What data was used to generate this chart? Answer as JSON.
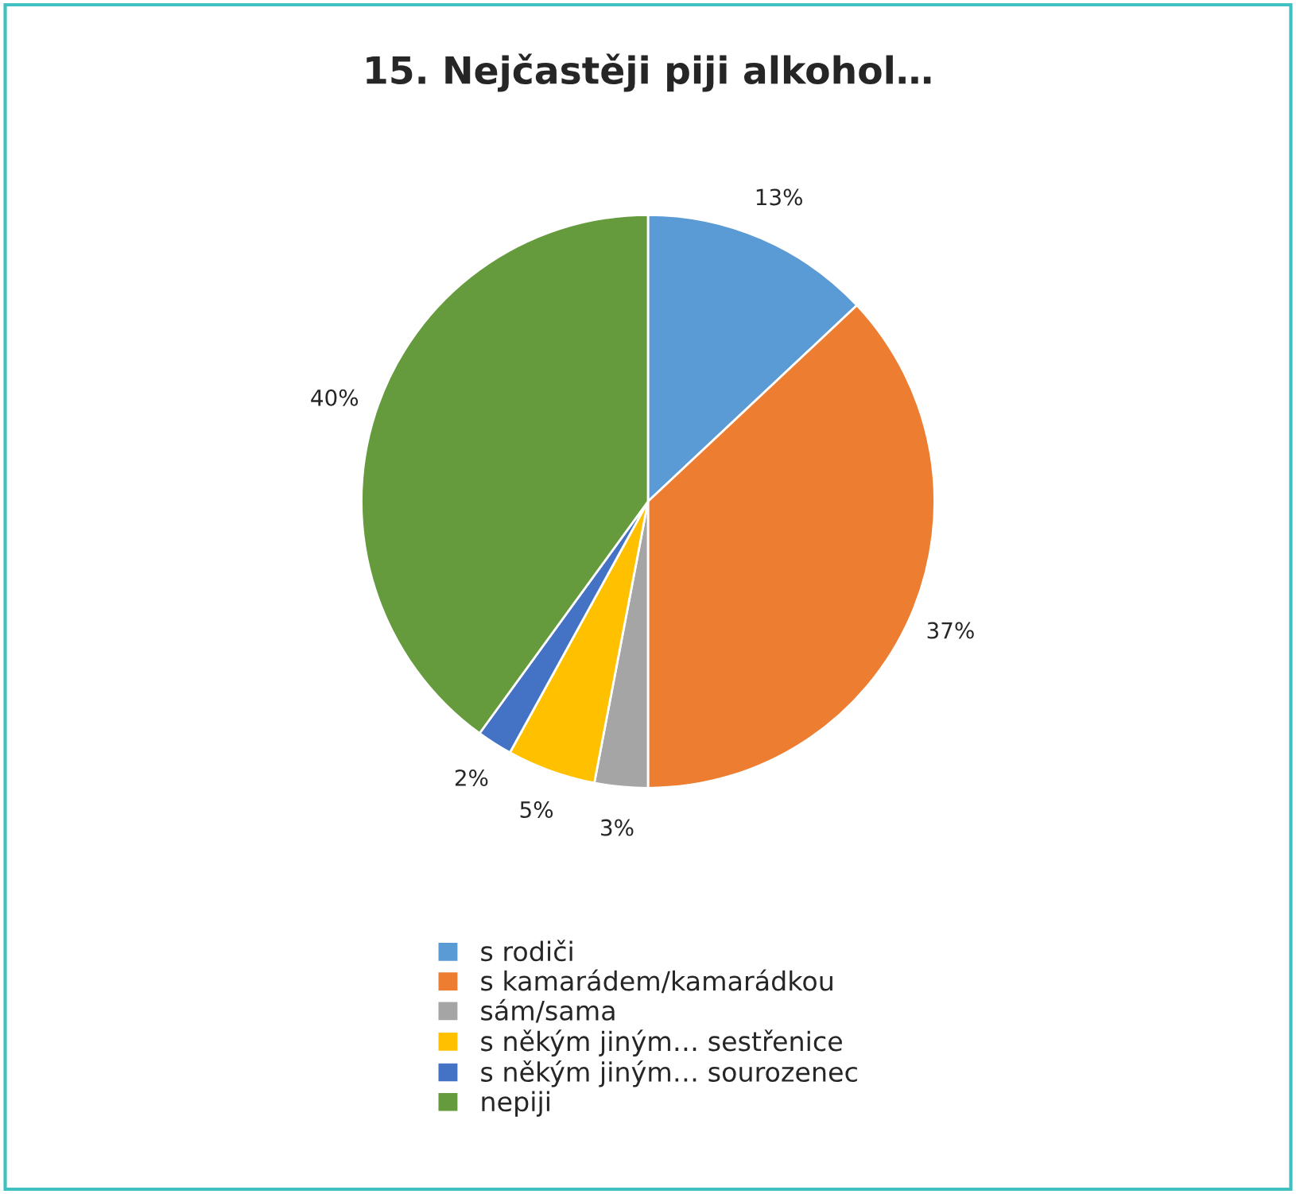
{
  "chart_data": {
    "type": "pie",
    "title": "15. Nejčastěji piji alkohol…",
    "categories": [
      "s rodiči",
      "s kamarádem/kamarádkou",
      "sám/sama",
      "s někým jiným… sestřenice",
      "s někým jiným… sourozenec",
      "nepiji"
    ],
    "values": [
      13,
      37,
      3,
      5,
      2,
      40
    ],
    "colors": [
      "#5b9bd5",
      "#ed7d31",
      "#a5a5a5",
      "#ffc000",
      "#4472c4",
      "#659b3d"
    ],
    "value_labels": [
      "13%",
      "37%",
      "3%",
      "5%",
      "2%",
      "40%"
    ],
    "legend": "bottom"
  }
}
